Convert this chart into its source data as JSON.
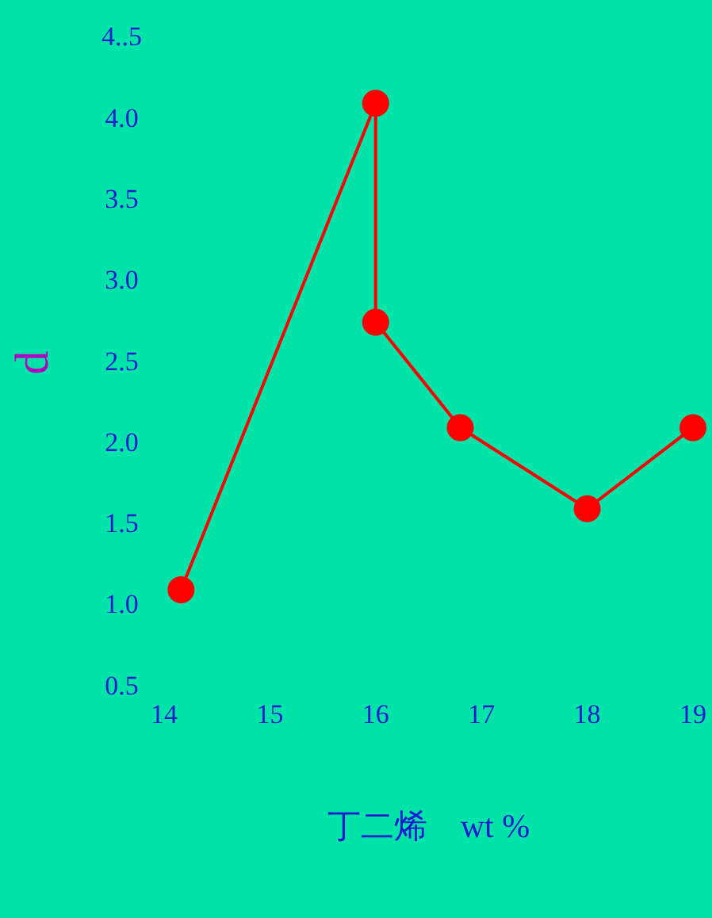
{
  "chart_data": {
    "type": "line",
    "xlabel": "丁二烯　wt %",
    "ylabel": "d",
    "x": [
      14.16,
      16,
      16,
      16.8,
      18,
      19
    ],
    "series": [
      {
        "color": "#ff0000",
        "values": [
          1.1,
          4.1,
          2.75,
          2.1,
          1.6,
          2.1
        ]
      }
    ],
    "xlim": [
      14,
      19
    ],
    "xticks": [
      14,
      15,
      16,
      17,
      18,
      19
    ],
    "ylim": [
      0.5,
      4.5
    ],
    "yticks": [
      {
        "value": 0.5,
        "label": "0.5"
      },
      {
        "value": 1,
        "label": "1.0"
      },
      {
        "value": 1.5,
        "label": "1.5"
      },
      {
        "value": 2,
        "label": "2.0"
      },
      {
        "value": 2.5,
        "label": "2.5"
      },
      {
        "value": 3,
        "label": "3.0"
      },
      {
        "value": 3.5,
        "label": "3.5"
      },
      {
        "value": 4,
        "label": "4.0"
      },
      {
        "value": 4.5,
        "label": "4..5"
      }
    ],
    "marker": "circle",
    "line_style": "solid",
    "grid": false,
    "legend": false
  }
}
